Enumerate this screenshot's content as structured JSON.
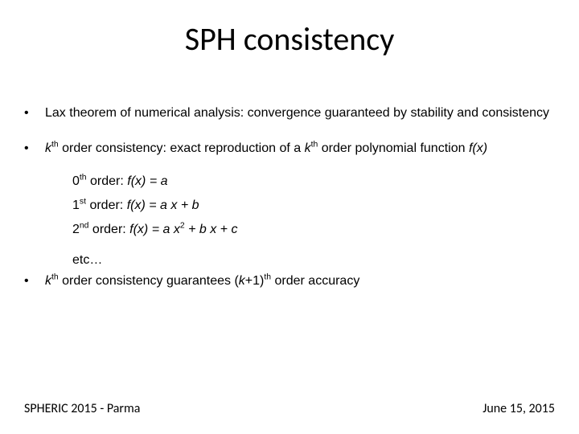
{
  "title": "SPH consistency",
  "bullets": {
    "b1": "Lax theorem of numerical analysis: convergence guaranteed by stability and consistency",
    "b2_pre": "k",
    "b2_sup": "th",
    "b2_mid": " order consistency: exact reproduction of a ",
    "b2_pre2": "k",
    "b2_sup2": "th",
    "b2_post": " order polynomial function ",
    "b2_fx": "f(x)",
    "b3_pre": "k",
    "b3_sup": "th",
    "b3_mid": " order consistency guarantees (",
    "b3_pre2": "k",
    "b3_post2": "+1)",
    "b3_sup2": "th",
    "b3_end": " order accuracy"
  },
  "orders": {
    "o0_n": "0",
    "o0_sup": "th",
    "o0_lbl": " order:  ",
    "o0_fx": "f(x) = a",
    "o1_n": "1",
    "o1_sup": "st",
    "o1_lbl": " order:  ",
    "o1_fx": "f(x) = a x + b",
    "o2_n": "2",
    "o2_sup": "nd",
    "o2_lbl": " order: ",
    "o2_fx_a": "f(x) = a x",
    "o2_exp": "2",
    "o2_fx_b": " + b x + c",
    "etc": "etc…"
  },
  "footer": {
    "left": "SPHERIC 2015 - Parma",
    "right": "June 15, 2015"
  },
  "bullet_char": "•",
  "colors": {
    "text": "#000000",
    "bg": "#ffffff"
  }
}
